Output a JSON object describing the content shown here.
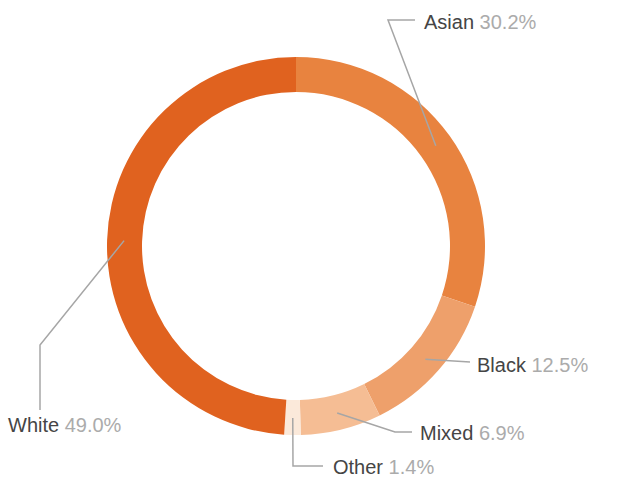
{
  "chart_data": {
    "type": "donut",
    "categories": [
      "Asian",
      "Black",
      "Mixed",
      "Other",
      "White"
    ],
    "values": [
      30.2,
      12.5,
      6.9,
      1.4,
      49.0
    ],
    "value_labels": [
      "30.2%",
      "12.5%",
      "6.9%",
      "1.4%",
      "49.0%"
    ],
    "colors": [
      "#e8833f",
      "#eea06b",
      "#f5bd94",
      "#fbe9da",
      "#e0621f"
    ],
    "data_labels": true
  }
}
